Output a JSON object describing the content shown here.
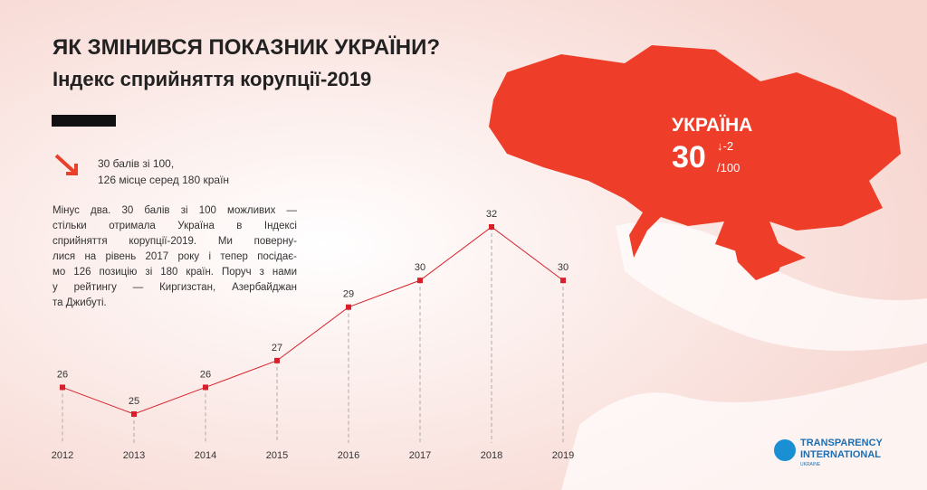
{
  "chart_data": {
    "type": "line",
    "title": "ЯК ЗМІНИВСЯ ПОКАЗНИК УКРАЇНИ?",
    "subtitle": "Індекс сприйняття корупції-2019",
    "categories": [
      "2012",
      "2013",
      "2014",
      "2015",
      "2016",
      "2017",
      "2018",
      "2019"
    ],
    "values": [
      26,
      25,
      26,
      27,
      29,
      30,
      32,
      30
    ],
    "color": "#d9202a"
  },
  "summary": [
    "30 балів зі 100,",
    "126 місце серед 180 країн"
  ],
  "description": [
    "Мінус два. 30 балів зі 100 можливих —",
    "стільки отримала Україна в Індексі",
    "сприйняття корупції-2019. Ми поверну-",
    "лися на рівень 2017 року і тепер посідає-",
    "мо 126 позицію зі 180 країн. Поруч з нами",
    "у рейтингу — Киргизстан, Азербайджан",
    "та Джибуті."
  ],
  "map_label": {
    "country": "УКРАЇНА",
    "score": "30",
    "change": "↓-2",
    "scale": "/100"
  },
  "logo": [
    "TRANSPARENCY",
    "INTERNATIONAL",
    "UKRAINE"
  ]
}
